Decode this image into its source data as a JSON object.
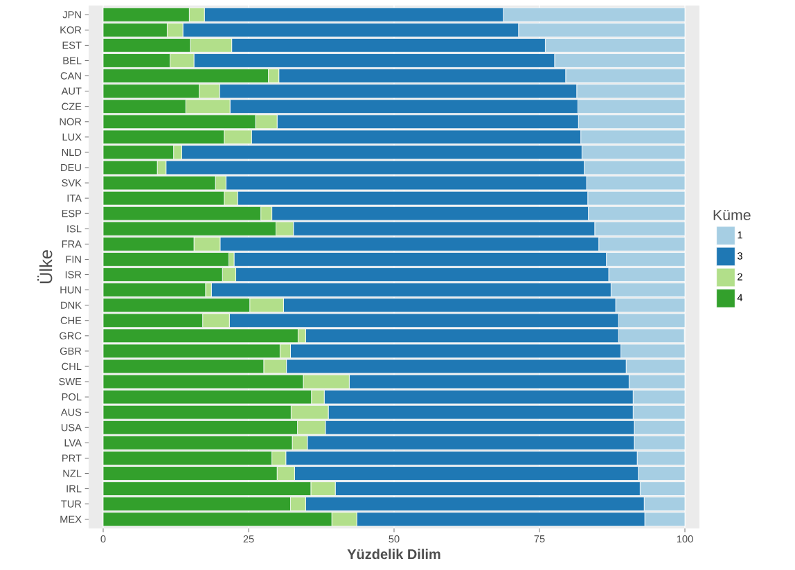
{
  "chart_data": {
    "type": "bar",
    "orientation": "horizontal",
    "stacked": true,
    "xlabel": "Yüzdelik Dilim",
    "ylabel": "Ülke",
    "legend_title": "Küme",
    "categories": [
      "JPN",
      "KOR",
      "EST",
      "BEL",
      "CAN",
      "AUT",
      "CZE",
      "NOR",
      "LUX",
      "NLD",
      "DEU",
      "SVK",
      "ITA",
      "ESP",
      "ISL",
      "FRA",
      "FIN",
      "ISR",
      "HUN",
      "DNK",
      "CHE",
      "GRC",
      "GBR",
      "CHL",
      "SWE",
      "POL",
      "AUS",
      "USA",
      "LVA",
      "PRT",
      "NZL",
      "IRL",
      "TUR",
      "MEX"
    ],
    "series": [
      {
        "name": "4",
        "color": "#33a02c",
        "values": [
          14.8,
          11.0,
          15.0,
          11.5,
          28.4,
          16.5,
          14.2,
          26.2,
          20.8,
          12.1,
          9.3,
          19.3,
          20.8,
          27.1,
          29.7,
          15.6,
          21.6,
          20.5,
          17.6,
          25.2,
          17.1,
          33.5,
          30.4,
          27.6,
          34.4,
          35.8,
          32.3,
          33.4,
          32.5,
          29.0,
          29.9,
          35.7,
          32.2,
          39.3
        ]
      },
      {
        "name": "2",
        "color": "#b2df8a",
        "values": [
          2.6,
          2.7,
          7.1,
          4.1,
          1.8,
          3.5,
          7.6,
          3.7,
          4.7,
          1.4,
          1.5,
          1.8,
          2.3,
          1.9,
          3.0,
          4.5,
          0.9,
          2.3,
          1.0,
          5.8,
          4.6,
          1.3,
          1.8,
          3.9,
          7.9,
          2.2,
          6.4,
          4.8,
          2.6,
          2.4,
          3.0,
          4.2,
          2.6,
          4.3
        ]
      },
      {
        "name": "3",
        "color": "#1f78b4",
        "values": [
          51.4,
          57.7,
          53.9,
          62.0,
          49.3,
          61.4,
          59.8,
          51.8,
          56.6,
          68.8,
          71.9,
          62.0,
          60.2,
          54.4,
          51.8,
          65.1,
          64.0,
          64.1,
          68.7,
          57.1,
          66.9,
          53.8,
          56.8,
          58.4,
          48.1,
          53.1,
          52.4,
          53.1,
          56.2,
          60.4,
          59.1,
          52.4,
          58.2,
          49.5
        ]
      },
      {
        "name": "1",
        "color": "#a6cee3",
        "values": [
          31.2,
          28.6,
          24.0,
          22.4,
          20.5,
          18.6,
          18.4,
          18.3,
          17.9,
          17.7,
          17.3,
          16.9,
          16.7,
          16.6,
          15.5,
          14.8,
          13.5,
          13.1,
          12.7,
          11.9,
          11.4,
          11.3,
          11.0,
          10.1,
          9.6,
          8.9,
          8.9,
          8.7,
          8.7,
          8.2,
          8.0,
          7.7,
          7.0,
          6.9
        ]
      }
    ],
    "xlim": [
      -2.5,
      102.5
    ],
    "xticks": [
      0,
      25,
      50,
      75,
      100
    ],
    "grid": "x",
    "legend": "right"
  }
}
